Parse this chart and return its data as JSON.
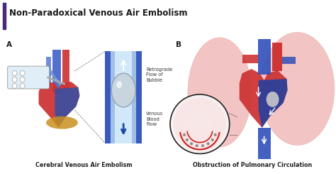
{
  "title": "Non-Paradoxical Venous Air Embolism",
  "title_color": "#1a1a1a",
  "title_fontsize": 8.5,
  "bg_color": "#ffffff",
  "accent_bar_color": "#4a2a7a",
  "panel_a_label": "A",
  "panel_b_label": "B",
  "caption_a": "Cerebral Venous Air Embolism",
  "caption_b": "Obstruction of Pulmonary Circulation",
  "caption_fontsize": 5.8,
  "annotation_retrograde": "Retrograde\nFlow of\nBubble",
  "annotation_venous": "Venous\nBlood\nFlow",
  "annotation_fontsize": 4.8,
  "vessel_blue_dark": "#1a3a8a",
  "vessel_blue_mid": "#3a5abf",
  "vessel_blue_light": "#6090d0",
  "vessel_blue_pale": "#a0c0e8",
  "bubble_gray": "#b8c8d8",
  "bubble_edge": "#8898a8",
  "heart_red": "#cc3030",
  "heart_dark": "#8a2020",
  "lung_pink": "#f0b0b0",
  "lung_edge": "#d89090",
  "arrow_blue": "#1a4aaa",
  "circle_edge": "#222222",
  "label_fontsize": 7.5
}
